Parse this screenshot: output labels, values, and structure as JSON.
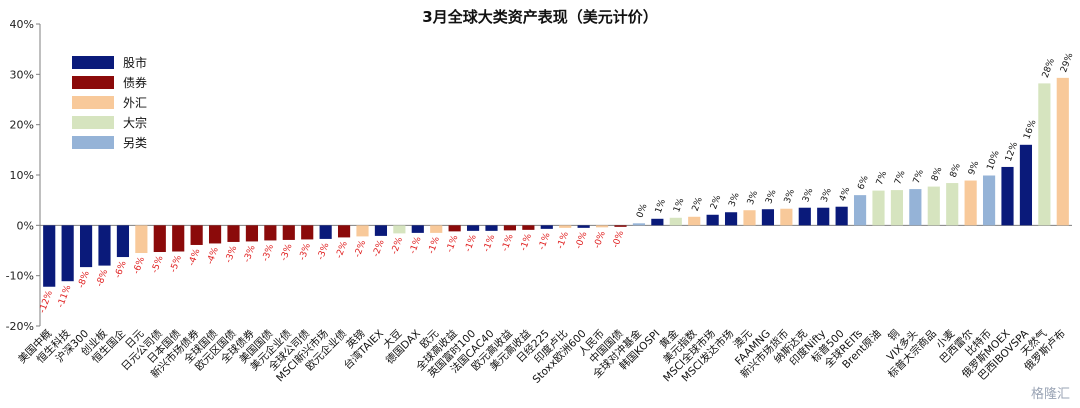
{
  "chart_data": {
    "type": "bar",
    "title": "3月全球大类资产表现（美元计价）",
    "ylim": [
      -20,
      40
    ],
    "yticks": [
      "-20%",
      "-10%",
      "0%",
      "10%",
      "20%",
      "30%",
      "40%"
    ],
    "ytick_values": [
      -20,
      -10,
      0,
      10,
      20,
      30,
      40
    ],
    "grid": false,
    "legend_position": "top-left",
    "legend": [
      {
        "name": "股市",
        "color": "#0a1a7a"
      },
      {
        "name": "债券",
        "color": "#8b0a0a"
      },
      {
        "name": "外汇",
        "color": "#f8c99a"
      },
      {
        "name": "大宗",
        "color": "#d6e4bf"
      },
      {
        "name": "另类",
        "color": "#95b3d7"
      }
    ],
    "categories": [
      "美国中概",
      "恒生科技",
      "沪深300",
      "创业板",
      "恒生国企",
      "日元",
      "日元公司债",
      "日本国债",
      "新兴市场债券",
      "全球国债",
      "欧元区国债",
      "全球债券",
      "美国国债",
      "美元企业债",
      "全球公司债",
      "MSCI新兴市场",
      "欧元企业债",
      "英镑",
      "台湾TAIEX",
      "大豆",
      "德国DAX",
      "欧元",
      "全球高收益",
      "英国富时100",
      "法国CAC40",
      "欧元高收益",
      "美元高收益",
      "日经225",
      "印度卢比",
      "Stoxx欧洲600",
      "人民币",
      "中国国债",
      "全球对冲基金",
      "韩国KOSPI",
      "黄金",
      "美元指数",
      "MSCI全球市场",
      "MSCI发达市场",
      "澳元",
      "FAAMNG",
      "新兴市场货币",
      "纳斯达克",
      "印度Nifty",
      "标普500",
      "全球REITs",
      "Brent原油",
      "铜",
      "VIX多头",
      "标普大宗商品",
      "小麦",
      "巴西雷尔",
      "比特币",
      "俄罗斯MOEX",
      "巴西IBOVSPA",
      "天然气",
      "俄罗斯卢布"
    ],
    "values": [
      -12.2,
      -11.1,
      -8.3,
      -8.0,
      -6.3,
      -5.5,
      -5.3,
      -5.2,
      -3.9,
      -3.6,
      -3.3,
      -3.2,
      -3.0,
      -2.9,
      -2.8,
      -2.7,
      -2.4,
      -2.2,
      -2.1,
      -1.6,
      -1.5,
      -1.5,
      -1.2,
      -1.1,
      -1.1,
      -1.0,
      -0.9,
      -0.7,
      -0.5,
      -0.5,
      -0.4,
      -0.3,
      0.4,
      1.3,
      1.5,
      1.7,
      2.1,
      2.6,
      3.0,
      3.2,
      3.3,
      3.5,
      3.5,
      3.7,
      6.0,
      6.9,
      7.0,
      7.2,
      7.7,
      8.4,
      8.9,
      9.9,
      11.6,
      16.0,
      28.2,
      29.3
    ],
    "labels": [
      "-12%",
      "-11%",
      "-8%",
      "-8%",
      "-6%",
      "-6%",
      "-5%",
      "-5%",
      "-4%",
      "-4%",
      "-3%",
      "-3%",
      "-3%",
      "-3%",
      "-3%",
      "-3%",
      "-2%",
      "-2%",
      "-2%",
      "-2%",
      "-1%",
      "-1%",
      "-1%",
      "-1%",
      "-1%",
      "-1%",
      "-1%",
      "-1%",
      "-1%",
      "-0%",
      "-0%",
      "-0%",
      "0%",
      "1%",
      "1%",
      "2%",
      "2%",
      "3%",
      "3%",
      "3%",
      "3%",
      "3%",
      "3%",
      "4%",
      "6%",
      "7%",
      "7%",
      "7%",
      "8%",
      "8%",
      "9%",
      "10%",
      "12%",
      "16%",
      "28%",
      "29%"
    ],
    "asset_class": [
      "股市",
      "股市",
      "股市",
      "股市",
      "股市",
      "外汇",
      "债券",
      "债券",
      "债券",
      "债券",
      "债券",
      "债券",
      "债券",
      "债券",
      "债券",
      "股市",
      "债券",
      "外汇",
      "股市",
      "大宗",
      "股市",
      "外汇",
      "债券",
      "股市",
      "股市",
      "债券",
      "债券",
      "股市",
      "外汇",
      "股市",
      "外汇",
      "债券",
      "另类",
      "股市",
      "大宗",
      "外汇",
      "股市",
      "股市",
      "外汇",
      "股市",
      "外汇",
      "股市",
      "股市",
      "股市",
      "另类",
      "大宗",
      "大宗",
      "另类",
      "大宗",
      "大宗",
      "外汇",
      "另类",
      "股市",
      "股市",
      "大宗",
      "外汇"
    ]
  },
  "watermark": "格隆汇"
}
